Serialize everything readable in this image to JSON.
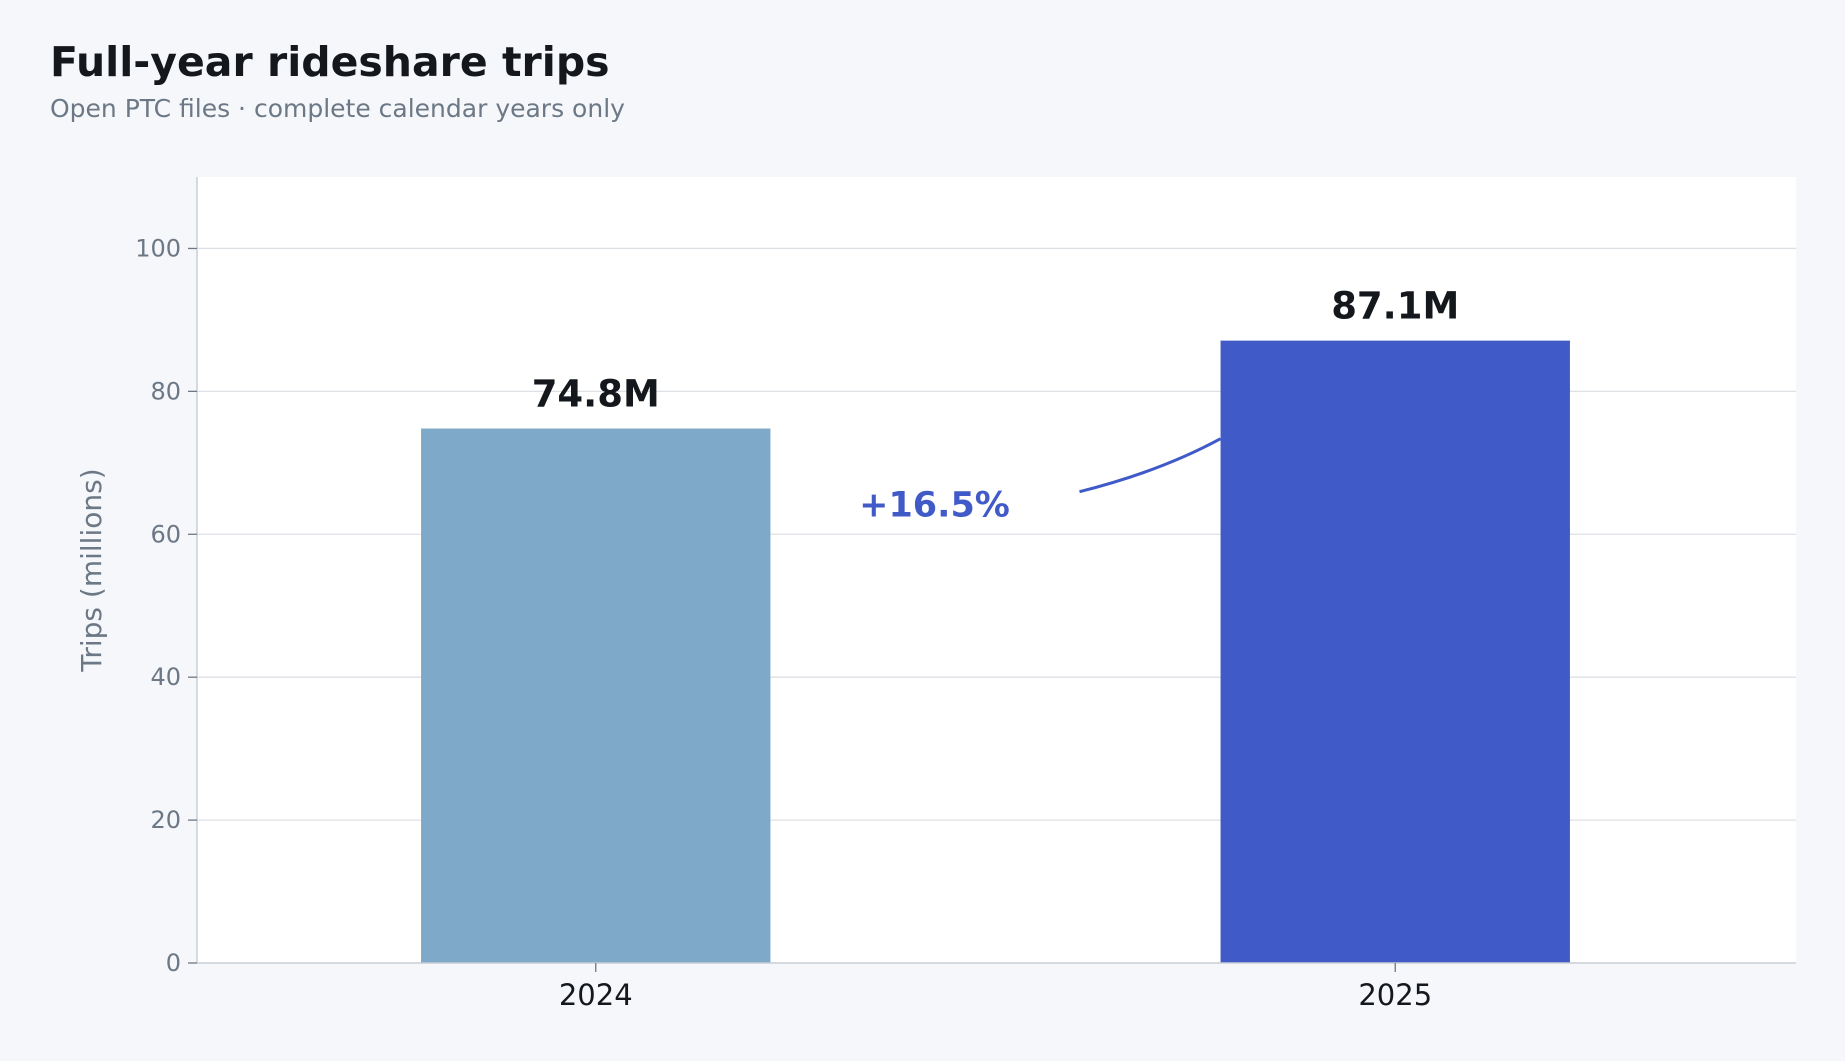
{
  "header": {
    "title": "Full-year rideshare trips",
    "subtitle": "Open PTC files · complete calendar years only"
  },
  "chart_data": {
    "type": "bar",
    "title": "Full-year rideshare trips",
    "subtitle": "Open PTC files · complete calendar years only",
    "xlabel": "",
    "ylabel": "Trips (millions)",
    "categories": [
      "2024",
      "2025"
    ],
    "values": [
      74.8,
      87.1
    ],
    "value_labels": [
      "74.8M",
      "87.1M"
    ],
    "bar_colors": [
      "#7ea9c9",
      "#405ac7"
    ],
    "ylim": [
      0,
      110
    ],
    "yticks": [
      0,
      20,
      40,
      60,
      80,
      100
    ],
    "grid": "horizontal",
    "annotation": {
      "text": "+16.5%",
      "color": "#405ac7",
      "points_to": "2025"
    }
  },
  "colors": {
    "background": "#f5f7fa",
    "plot_background": "#ffffff",
    "grid": "#dde1e6",
    "axis": "#c9ced6",
    "text": "#14171c",
    "muted_text": "#6c7885"
  }
}
